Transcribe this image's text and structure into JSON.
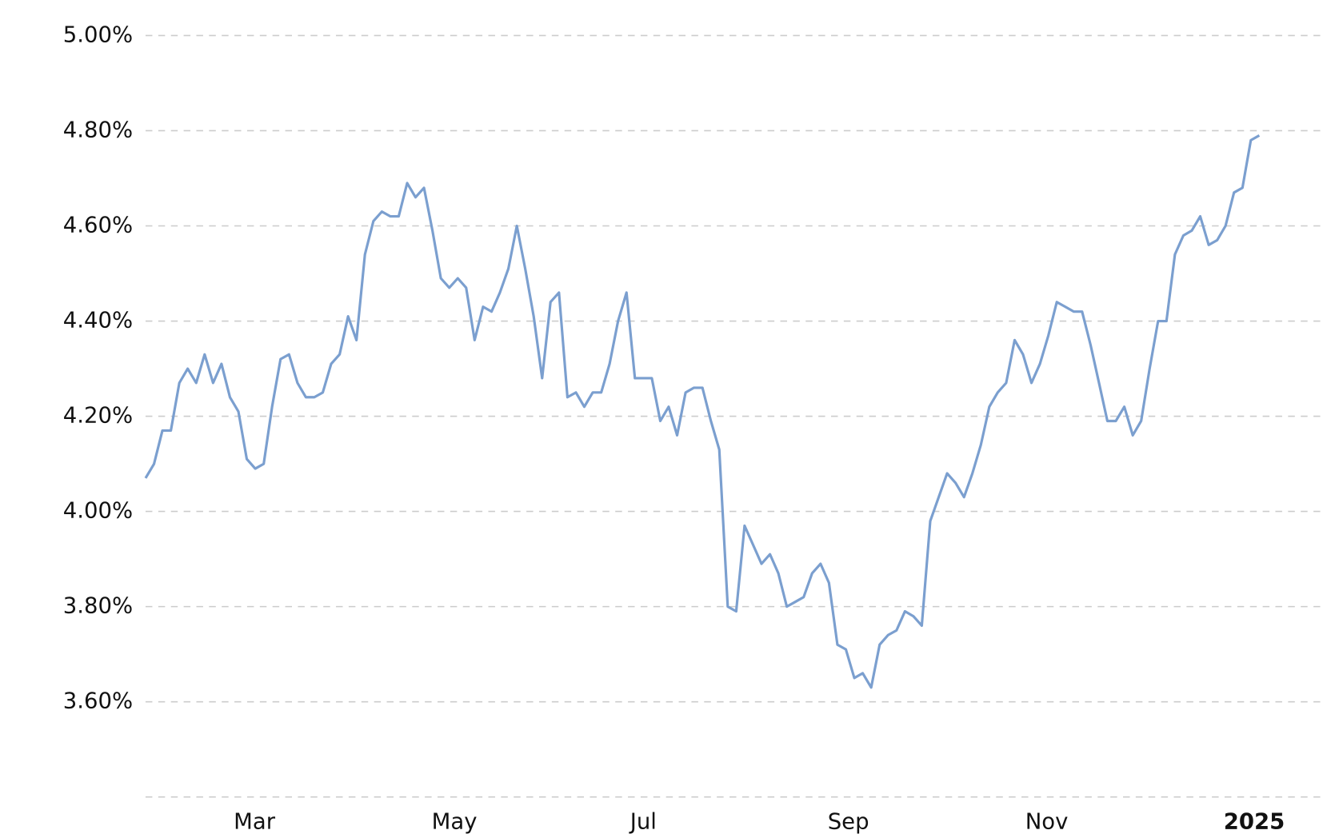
{
  "chart_data": {
    "type": "line",
    "color": "#7b9fcf",
    "grid": true,
    "values": [
      4.07,
      4.1,
      4.17,
      4.17,
      4.27,
      4.3,
      4.27,
      4.33,
      4.27,
      4.31,
      4.24,
      4.21,
      4.11,
      4.09,
      4.1,
      4.22,
      4.32,
      4.33,
      4.27,
      4.24,
      4.24,
      4.25,
      4.31,
      4.33,
      4.41,
      4.36,
      4.54,
      4.61,
      4.63,
      4.62,
      4.62,
      4.69,
      4.66,
      4.68,
      4.59,
      4.49,
      4.47,
      4.49,
      4.47,
      4.36,
      4.43,
      4.42,
      4.46,
      4.51,
      4.6,
      4.51,
      4.41,
      4.28,
      4.44,
      4.46,
      4.24,
      4.25,
      4.22,
      4.25,
      4.25,
      4.31,
      4.4,
      4.46,
      4.28,
      4.28,
      4.28,
      4.19,
      4.22,
      4.16,
      4.25,
      4.26,
      4.26,
      4.19,
      4.13,
      3.8,
      3.79,
      3.97,
      3.93,
      3.89,
      3.91,
      3.87,
      3.8,
      3.81,
      3.82,
      3.87,
      3.89,
      3.85,
      3.72,
      3.71,
      3.65,
      3.66,
      3.63,
      3.72,
      3.74,
      3.75,
      3.79,
      3.78,
      3.76,
      3.98,
      4.03,
      4.08,
      4.06,
      4.03,
      4.08,
      4.14,
      4.22,
      4.25,
      4.27,
      4.36,
      4.33,
      4.27,
      4.31,
      4.37,
      4.44,
      4.43,
      4.42,
      4.42,
      4.35,
      4.27,
      4.19,
      4.19,
      4.22,
      4.16,
      4.19,
      4.3,
      4.4,
      4.4,
      4.54,
      4.58,
      4.59,
      4.62,
      4.56,
      4.57,
      4.6,
      4.67,
      4.68,
      4.78,
      4.79
    ],
    "xlim": [
      0,
      132
    ],
    "xticks": [
      {
        "value": 12.9,
        "label": "Mar"
      },
      {
        "value": 36.6,
        "label": "May"
      },
      {
        "value": 59.0,
        "label": "Jul"
      },
      {
        "value": 83.3,
        "label": "Sep"
      },
      {
        "value": 106.8,
        "label": "Nov"
      },
      {
        "value": 131.4,
        "label": "2025"
      }
    ],
    "ylim": [
      3.4,
      5.0
    ],
    "yticks": [
      {
        "value": 3.6,
        "label": "3.60%"
      },
      {
        "value": 3.8,
        "label": "3.80%"
      },
      {
        "value": 4.0,
        "label": "4.00%"
      },
      {
        "value": 4.2,
        "label": "4.20%"
      },
      {
        "value": 4.4,
        "label": "4.40%"
      },
      {
        "value": 4.6,
        "label": "4.60%"
      },
      {
        "value": 4.8,
        "label": "4.80%"
      },
      {
        "value": 5.0,
        "label": "5.00%"
      }
    ]
  }
}
